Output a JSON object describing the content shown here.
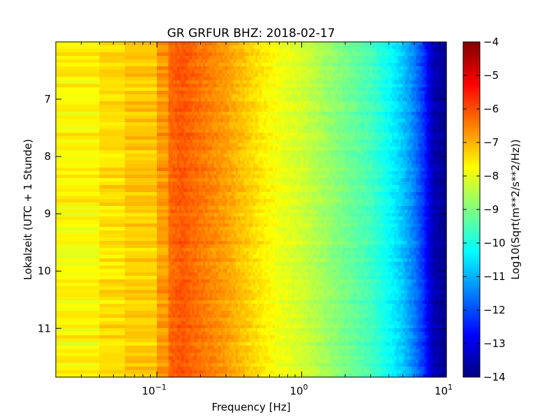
{
  "chart_data": {
    "type": "heatmap",
    "title": "GR GRFUR BHZ: 2018-02-17",
    "xlabel": "Frequency [Hz]",
    "ylabel": "Lokalzeit (UTC + 1 Stunde)",
    "xscale": "log",
    "xlim": [
      0.02,
      10
    ],
    "ylim": [
      6.0,
      11.85
    ],
    "y_direction": "increasing downward",
    "x_ticks": [
      {
        "value": 0.1,
        "base": "10",
        "exp": "−1"
      },
      {
        "value": 1,
        "base": "10",
        "exp": "0"
      },
      {
        "value": 10,
        "base": "10",
        "exp": "1"
      }
    ],
    "y_ticks": [
      7,
      8,
      9,
      10,
      11
    ],
    "colorbar": {
      "label": "Log10(Sqrt(m**2/s**2/Hz))",
      "range": [
        -14,
        -4
      ],
      "ticks": [
        -4,
        -5,
        -6,
        -7,
        -8,
        -9,
        -10,
        -11,
        -12,
        -13,
        -14
      ],
      "colormap": "jet"
    },
    "frequency_profile": [
      {
        "f": 0.02,
        "v": -7.8
      },
      {
        "f": 0.04,
        "v": -7.6
      },
      {
        "f": 0.06,
        "v": -7.3
      },
      {
        "f": 0.1,
        "v": -7.2
      },
      {
        "f": 0.12,
        "v": -6.3
      },
      {
        "f": 0.15,
        "v": -6.1
      },
      {
        "f": 0.2,
        "v": -6.4
      },
      {
        "f": 0.3,
        "v": -6.8
      },
      {
        "f": 0.5,
        "v": -7.5
      },
      {
        "f": 0.7,
        "v": -7.9
      },
      {
        "f": 1.0,
        "v": -8.2
      },
      {
        "f": 2.0,
        "v": -9.1
      },
      {
        "f": 3.0,
        "v": -9.6
      },
      {
        "f": 4.0,
        "v": -10.2
      },
      {
        "f": 5.0,
        "v": -10.8
      },
      {
        "f": 6.0,
        "v": -11.5
      },
      {
        "f": 7.0,
        "v": -12.3
      },
      {
        "f": 8.0,
        "v": -13.4
      },
      {
        "f": 10.0,
        "v": -13.9
      }
    ]
  }
}
